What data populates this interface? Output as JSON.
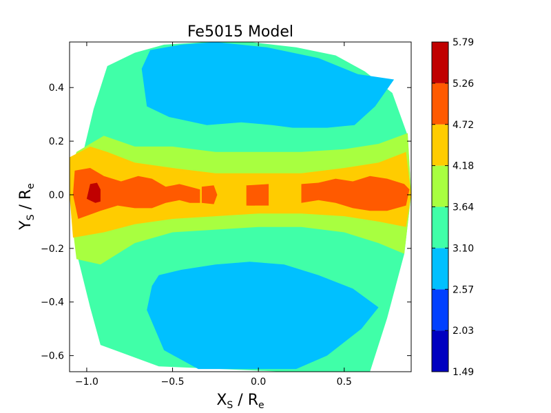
{
  "chart_data": {
    "type": "heatmap",
    "subtype": "filled-contour",
    "title": "Fe5015 Model",
    "xlabel": {
      "main": "X",
      "sub": "S",
      "sep": "  / ",
      "unit_main": "R",
      "unit_sub": "e"
    },
    "ylabel": {
      "main": "Y",
      "sub": "S",
      "sep": "  / ",
      "unit_main": "R",
      "unit_sub": "e"
    },
    "xlim": [
      -1.1,
      0.89
    ],
    "ylim": [
      -0.66,
      0.57
    ],
    "xticks": [
      -1.0,
      -0.5,
      0.0,
      0.5
    ],
    "xtick_labels": [
      "−1.0",
      "−0.5",
      "0.0",
      "0.5"
    ],
    "yticks": [
      0.4,
      0.2,
      0.0,
      -0.2,
      -0.4,
      -0.6
    ],
    "ytick_labels": [
      "0.4",
      "0.2",
      "0.0",
      "−0.2",
      "−0.4",
      "−0.6"
    ],
    "colorbar": {
      "levels": [
        1.49,
        2.03,
        2.57,
        3.1,
        3.64,
        4.18,
        4.72,
        5.26,
        5.79
      ],
      "labels": [
        "1.49",
        "2.03",
        "2.57",
        "3.10",
        "3.64",
        "4.18",
        "4.72",
        "5.26",
        "5.79"
      ],
      "colors": [
        "#0000c0",
        "#0040ff",
        "#00c0ff",
        "#40ffa8",
        "#a8ff40",
        "#ffcc00",
        "#ff5a00",
        "#c00000"
      ]
    },
    "regions": [
      {
        "level_index": 3,
        "note": "outer envelope (3.10-3.64)",
        "points": [
          [
            -1.02,
            0.16
          ],
          [
            -0.96,
            0.32
          ],
          [
            -0.88,
            0.48
          ],
          [
            -0.72,
            0.53
          ],
          [
            -0.55,
            0.56
          ],
          [
            -0.3,
            0.57
          ],
          [
            -0.05,
            0.57
          ],
          [
            0.22,
            0.55
          ],
          [
            0.45,
            0.52
          ],
          [
            0.62,
            0.46
          ],
          [
            0.78,
            0.38
          ],
          [
            0.87,
            0.22
          ],
          [
            0.89,
            0.0
          ],
          [
            0.85,
            -0.22
          ],
          [
            0.75,
            -0.46
          ],
          [
            0.65,
            -0.66
          ],
          [
            0.15,
            -0.66
          ],
          [
            -0.58,
            -0.64
          ],
          [
            -0.92,
            -0.56
          ],
          [
            -0.98,
            -0.42
          ],
          [
            -1.05,
            -0.24
          ],
          [
            -1.08,
            -0.08
          ],
          [
            -1.09,
            0.05
          ]
        ]
      },
      {
        "level_index": 2,
        "note": "upper blue region (2.57-3.10)",
        "points": [
          [
            -0.63,
            0.54
          ],
          [
            -0.45,
            0.56
          ],
          [
            -0.25,
            0.57
          ],
          [
            0.05,
            0.55
          ],
          [
            0.35,
            0.51
          ],
          [
            0.58,
            0.45
          ],
          [
            0.79,
            0.43
          ],
          [
            0.68,
            0.33
          ],
          [
            0.56,
            0.26
          ],
          [
            0.4,
            0.25
          ],
          [
            0.2,
            0.25
          ],
          [
            0.08,
            0.26
          ],
          [
            -0.1,
            0.27
          ],
          [
            -0.3,
            0.26
          ],
          [
            -0.52,
            0.29
          ],
          [
            -0.65,
            0.33
          ],
          [
            -0.68,
            0.47
          ]
        ]
      },
      {
        "level_index": 2,
        "note": "lower blue region (2.57-3.10)",
        "points": [
          [
            -0.58,
            -0.3
          ],
          [
            -0.45,
            -0.28
          ],
          [
            -0.25,
            -0.26
          ],
          [
            -0.05,
            -0.25
          ],
          [
            0.15,
            -0.26
          ],
          [
            0.35,
            -0.3
          ],
          [
            0.55,
            -0.35
          ],
          [
            0.7,
            -0.42
          ],
          [
            0.6,
            -0.5
          ],
          [
            0.4,
            -0.6
          ],
          [
            0.22,
            -0.65
          ],
          [
            -0.35,
            -0.65
          ],
          [
            -0.55,
            -0.58
          ],
          [
            -0.65,
            -0.43
          ],
          [
            -0.62,
            -0.34
          ]
        ]
      },
      {
        "level_index": 4,
        "note": "green band (3.64-4.18)",
        "points": [
          [
            -1.06,
            0.16
          ],
          [
            -0.9,
            0.22
          ],
          [
            -0.72,
            0.18
          ],
          [
            -0.5,
            0.18
          ],
          [
            -0.25,
            0.16
          ],
          [
            0.0,
            0.16
          ],
          [
            0.25,
            0.16
          ],
          [
            0.5,
            0.17
          ],
          [
            0.7,
            0.19
          ],
          [
            0.87,
            0.23
          ],
          [
            0.89,
            0.0
          ],
          [
            0.85,
            -0.22
          ],
          [
            0.7,
            -0.18
          ],
          [
            0.5,
            -0.14
          ],
          [
            0.25,
            -0.12
          ],
          [
            0.0,
            -0.12
          ],
          [
            -0.25,
            -0.13
          ],
          [
            -0.5,
            -0.14
          ],
          [
            -0.72,
            -0.18
          ],
          [
            -0.92,
            -0.26
          ],
          [
            -1.06,
            -0.24
          ],
          [
            -1.09,
            -0.08
          ],
          [
            -1.1,
            0.08
          ]
        ]
      },
      {
        "level_index": 5,
        "note": "yellow band (4.18-4.72)",
        "points": [
          [
            -1.1,
            0.14
          ],
          [
            -0.98,
            0.18
          ],
          [
            -0.88,
            0.16
          ],
          [
            -0.72,
            0.12
          ],
          [
            -0.5,
            0.1
          ],
          [
            -0.25,
            0.08
          ],
          [
            0.0,
            0.08
          ],
          [
            0.25,
            0.08
          ],
          [
            0.5,
            0.1
          ],
          [
            0.7,
            0.12
          ],
          [
            0.86,
            0.16
          ],
          [
            0.89,
            0.0
          ],
          [
            0.86,
            -0.12
          ],
          [
            0.7,
            -0.1
          ],
          [
            0.5,
            -0.08
          ],
          [
            0.25,
            -0.07
          ],
          [
            0.0,
            -0.07
          ],
          [
            -0.25,
            -0.08
          ],
          [
            -0.5,
            -0.09
          ],
          [
            -0.72,
            -0.11
          ],
          [
            -0.9,
            -0.14
          ],
          [
            -1.08,
            -0.16
          ],
          [
            -1.1,
            0.0
          ]
        ]
      },
      {
        "level_index": 6,
        "note": "orange core (4.72-5.26)",
        "points": [
          [
            -1.07,
            0.09
          ],
          [
            -0.98,
            0.1
          ],
          [
            -0.9,
            0.07
          ],
          [
            -0.8,
            0.05
          ],
          [
            -0.7,
            0.07
          ],
          [
            -0.62,
            0.06
          ],
          [
            -0.54,
            0.03
          ],
          [
            -0.46,
            0.04
          ],
          [
            -0.4,
            0.03
          ],
          [
            -0.34,
            0.02
          ],
          [
            -0.34,
            -0.03
          ],
          [
            -0.4,
            -0.03
          ],
          [
            -0.46,
            -0.02
          ],
          [
            -0.54,
            -0.03
          ],
          [
            -0.62,
            -0.05
          ],
          [
            -0.72,
            -0.05
          ],
          [
            -0.82,
            -0.04
          ],
          [
            -0.92,
            -0.06
          ],
          [
            -1.05,
            -0.09
          ],
          [
            -1.08,
            0.0
          ]
        ]
      },
      {
        "level_index": 6,
        "note": "orange blob near x=-0.3",
        "points": [
          [
            -0.33,
            0.03
          ],
          [
            -0.26,
            0.035
          ],
          [
            -0.24,
            0.0
          ],
          [
            -0.26,
            -0.035
          ],
          [
            -0.33,
            -0.03
          ]
        ]
      },
      {
        "level_index": 6,
        "note": "orange blob near x=-0.05",
        "points": [
          [
            -0.07,
            0.035
          ],
          [
            -0.02,
            0.035
          ],
          [
            -0.02,
            -0.04
          ],
          [
            -0.07,
            -0.04
          ]
        ]
      },
      {
        "level_index": 6,
        "note": "orange blob near x=0",
        "points": [
          [
            -0.06,
            0.035
          ],
          [
            0.06,
            0.04
          ],
          [
            0.06,
            -0.04
          ],
          [
            -0.06,
            -0.04
          ]
        ]
      },
      {
        "level_index": 6,
        "note": "orange right section",
        "points": [
          [
            0.25,
            0.04
          ],
          [
            0.35,
            0.045
          ],
          [
            0.45,
            0.06
          ],
          [
            0.55,
            0.05
          ],
          [
            0.65,
            0.07
          ],
          [
            0.75,
            0.06
          ],
          [
            0.85,
            0.04
          ],
          [
            0.88,
            0.02
          ],
          [
            0.86,
            -0.04
          ],
          [
            0.75,
            -0.06
          ],
          [
            0.65,
            -0.06
          ],
          [
            0.55,
            -0.05
          ],
          [
            0.45,
            -0.03
          ],
          [
            0.35,
            -0.02
          ],
          [
            0.25,
            -0.03
          ]
        ]
      },
      {
        "level_index": 7,
        "note": "red peak (5.26-5.79)",
        "points": [
          [
            -0.98,
            0.04
          ],
          [
            -0.94,
            0.045
          ],
          [
            -0.92,
            0.02
          ],
          [
            -0.92,
            -0.025
          ],
          [
            -0.95,
            -0.03
          ],
          [
            -1.0,
            -0.015
          ]
        ]
      }
    ]
  }
}
